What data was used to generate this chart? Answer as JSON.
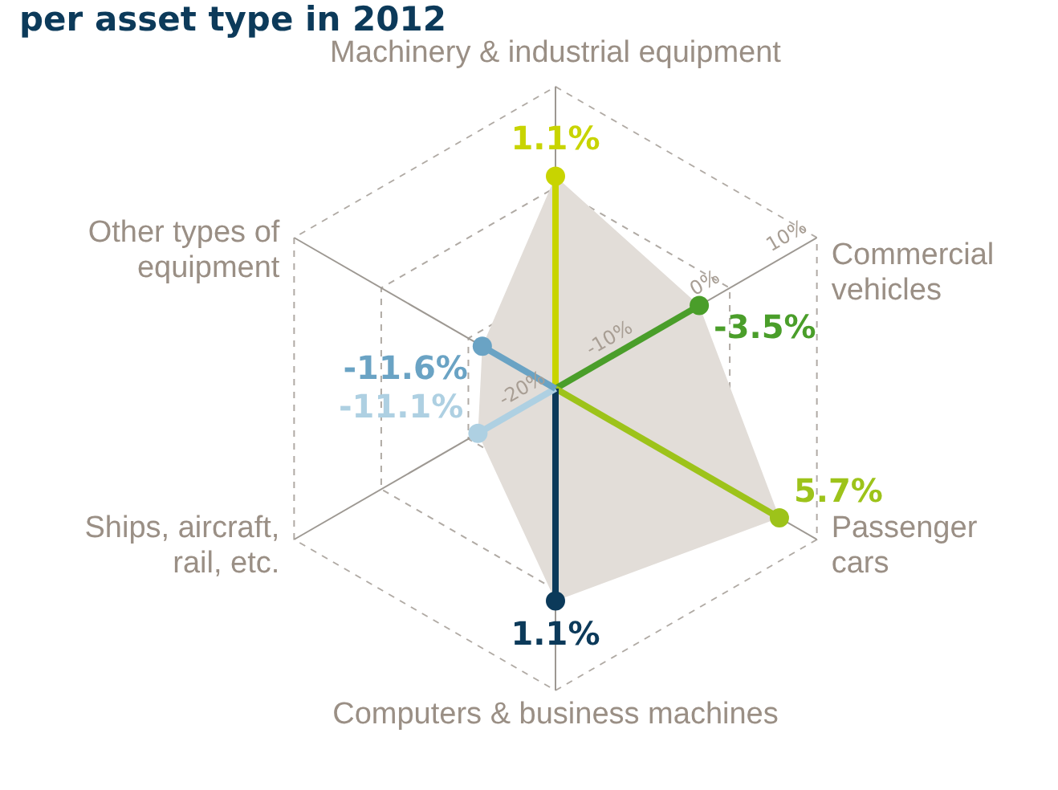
{
  "chart_data": {
    "type": "radar",
    "title": "per asset type in 2012",
    "categories": [
      "Machinery & industrial equipment",
      "Commercial vehicles",
      "Passenger cars",
      "Computers & business machines",
      "Ships, aircraft, rail, etc.",
      "Other types of equipment"
    ],
    "series": [
      {
        "color": "#e2ddd8",
        "colors": [
          "#c8d400",
          "#4a9e2a",
          "#9dc31a",
          "#0c3a5a",
          "#aed0e2",
          "#6aa3c4"
        ],
        "values": [
          1.1,
          -3.5,
          5.7,
          1.1,
          -11.1,
          -11.6
        ],
        "value_labels": [
          "1.1%",
          "-3.5%",
          "5.7%",
          "1.1%",
          "-11.1%",
          "-11.6%"
        ]
      }
    ],
    "ylim": [
      -20,
      10
    ],
    "yticks": [
      {
        "value": -20,
        "label": "-20%"
      },
      {
        "value": -10,
        "label": "-10%"
      },
      {
        "value": 0,
        "label": "0%"
      },
      {
        "value": 10,
        "label": "10%"
      }
    ],
    "grid": true,
    "marker": "circle"
  }
}
